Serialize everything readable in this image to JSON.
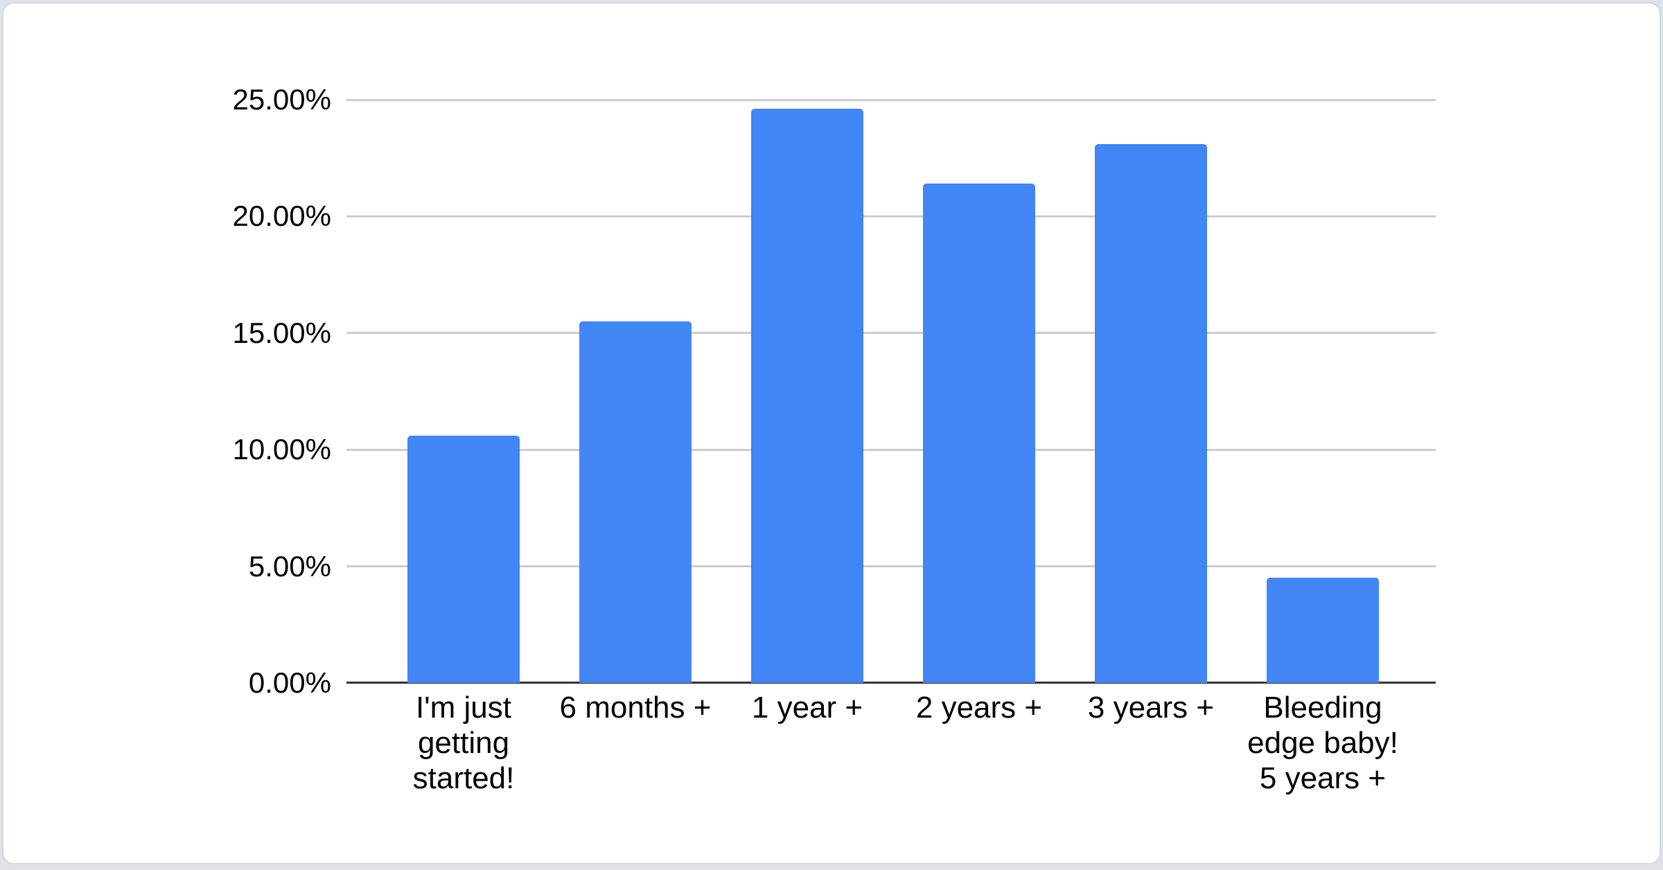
{
  "page": {
    "background_color": "#dfe2e6"
  },
  "card": {
    "background_color": "#ffffff",
    "border_color": "#d3d7db"
  },
  "chart_data": {
    "type": "bar",
    "title": "",
    "xlabel": "",
    "ylabel": "",
    "categories": [
      "I'm just getting started!",
      "6 months +",
      "1 year +",
      "2 years +",
      "3 years +",
      "Bleeding edge baby! 5 years +"
    ],
    "values": [
      10.6,
      15.5,
      24.6,
      21.4,
      23.1,
      4.5
    ],
    "value_format": "percent",
    "ylim": [
      0,
      25
    ],
    "ytick_interval": 5,
    "ytick_labels": [
      "0.00%",
      "5.00%",
      "10.00%",
      "15.00%",
      "20.00%",
      "25.00%"
    ],
    "grid": true,
    "legend": "none",
    "bar_color": "#4285f4",
    "gridline_color": "#cccccc",
    "axis_line_color": "#333333",
    "text_color": "#000000"
  }
}
